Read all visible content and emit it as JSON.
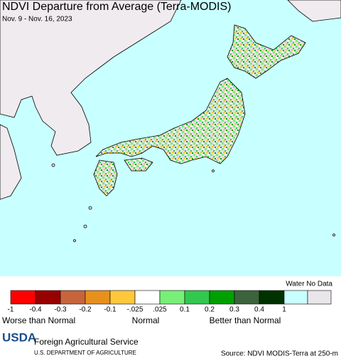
{
  "header": {
    "title": "NDVI Departure from Average (Terra-MODIS)",
    "date": "Nov. 9 - Nov. 16, 2023"
  },
  "legend": {
    "extra_title": "Water No Data",
    "colors": [
      "#ff0000",
      "#990000",
      "#c8643c",
      "#e8901c",
      "#ffc83c",
      "#ffffff",
      "#78f078",
      "#32c850",
      "#00a000",
      "#3c643c",
      "#003200"
    ],
    "extra_colors": [
      "#c8ffff",
      "#e8e6e8"
    ],
    "labels": [
      "-1",
      "-0.4",
      "-0.3",
      "-0.2",
      "-0.1",
      "-.025",
      ".025",
      "0.1",
      "0.2",
      "0.3",
      "0.4",
      "1"
    ],
    "captions": [
      "Worse than Normal",
      "Normal",
      "Better than Normal"
    ]
  },
  "footer": {
    "logo": "USDA",
    "agency": "Foreign Agricultural Service",
    "department": "U.S. DEPARTMENT OF AGRICULTURE",
    "source": "Source: NDVI MODIS-Terra at 250-m"
  }
}
